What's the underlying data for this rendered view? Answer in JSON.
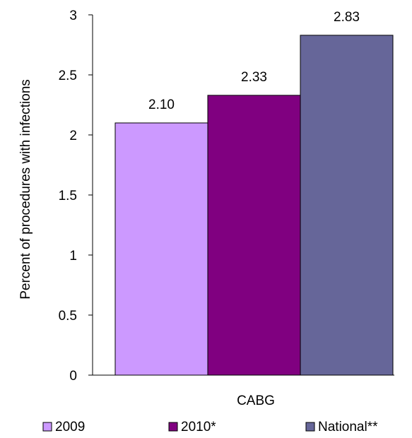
{
  "chart_data": {
    "type": "bar",
    "categories": [
      "CABG"
    ],
    "series": [
      {
        "name": "2009",
        "values": [
          2.1
        ],
        "label": "2.10",
        "color": "#cc99ff"
      },
      {
        "name": "2010*",
        "values": [
          2.33
        ],
        "label": "2.33",
        "color": "#800080"
      },
      {
        "name": "National**",
        "values": [
          2.83
        ],
        "label": "2.83",
        "color": "#666699"
      }
    ],
    "title": "",
    "xlabel": "",
    "ylabel": "Percent of procedures with infections",
    "ylim": [
      0,
      3
    ],
    "yticks": [
      "0",
      "0.5",
      "1",
      "1.5",
      "2",
      "2.5",
      "3"
    ],
    "grid": false,
    "legend_position": "bottom"
  }
}
